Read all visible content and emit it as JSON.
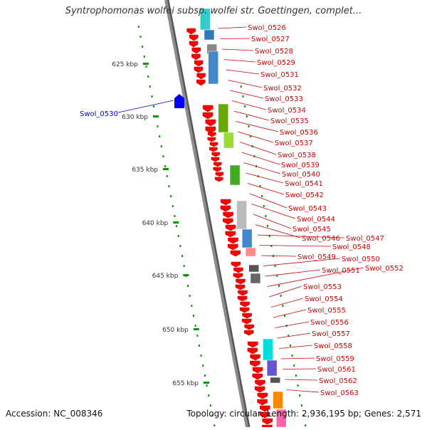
{
  "title": "Syntrophomonas wolfei subsp. wolfei str. Goettingen, complet...",
  "footer": {
    "accession": "Accession: NC_008346",
    "summary": "Topology: circular; Length: 2,936,195 bp; Genes: 2,571"
  },
  "colors": {
    "backbone": "#8c8c8c",
    "forward_gene": "#ff0000",
    "reverse_gene": "#0000ff",
    "label_forward": "#cc0000",
    "label_reverse": "#0000cc",
    "tick": "#009900",
    "tick_label": "#333333"
  },
  "ruler": [
    {
      "label": "625 kbp"
    },
    {
      "label": "630 kbp"
    },
    {
      "label": "635 kbp"
    },
    {
      "label": "640 kbp"
    },
    {
      "label": "645 kbp"
    },
    {
      "label": "650 kbp"
    },
    {
      "label": "655 kbp"
    }
  ],
  "genes_reverse": [
    {
      "label": "Swol_0530"
    }
  ],
  "genes_forward": [
    {
      "label": "Swol_0526"
    },
    {
      "label": "Swol_0527"
    },
    {
      "label": "Swol_0528"
    },
    {
      "label": "Swol_0529"
    },
    {
      "label": "Swol_0531"
    },
    {
      "label": "Swol_0532"
    },
    {
      "label": "Swol_0533"
    },
    {
      "label": "Swol_0534"
    },
    {
      "label": "Swol_0535"
    },
    {
      "label": "Swol_0536"
    },
    {
      "label": "Swol_0537"
    },
    {
      "label": "Swol_0538"
    },
    {
      "label": "Swol_0539"
    },
    {
      "label": "Swol_0540"
    },
    {
      "label": "Swol_0541"
    },
    {
      "label": "Swol_0542"
    },
    {
      "label": "Swol_0543"
    },
    {
      "label": "Swol_0544"
    },
    {
      "label": "Swol_0545"
    },
    {
      "label": "Swol_0546"
    },
    {
      "label": "Swol_0547"
    },
    {
      "label": "Swol_0548"
    },
    {
      "label": "Swol_0549"
    },
    {
      "label": "Swol_0550"
    },
    {
      "label": "Swol_0551"
    },
    {
      "label": "Swol_0552"
    },
    {
      "label": "Swol_0553"
    },
    {
      "label": "Swol_0554"
    },
    {
      "label": "Swol_0555"
    },
    {
      "label": "Swol_0556"
    },
    {
      "label": "Swol_0557"
    },
    {
      "label": "Swol_0558"
    },
    {
      "label": "Swol_0559"
    },
    {
      "label": "Swol_0561"
    },
    {
      "label": "Swol_0562"
    },
    {
      "label": "Swol_0563"
    }
  ]
}
